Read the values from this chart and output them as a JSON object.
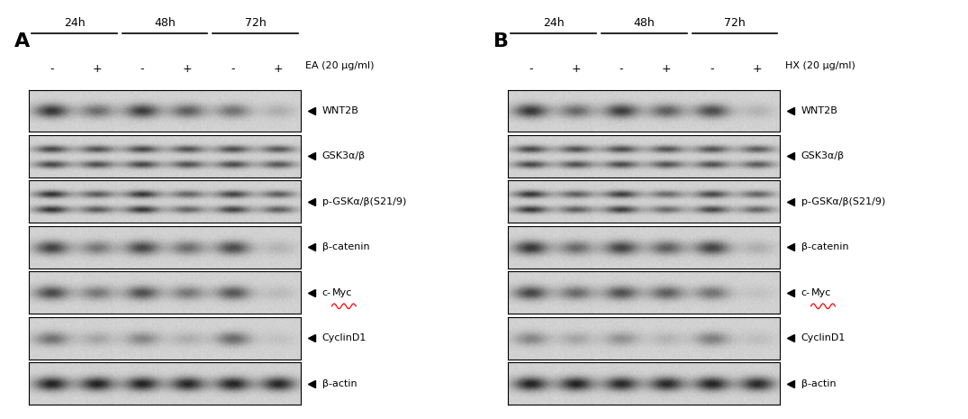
{
  "panel_A_label": "A",
  "panel_B_label": "B",
  "time_points": [
    "24h",
    "48h",
    "72h"
  ],
  "treatment_A": "EA (20 μg/ml)",
  "treatment_B": "HX (20 μg/ml)",
  "proteins": [
    "WNT2B",
    "GSK3α/β",
    "p-GSKα/β(S21/9)",
    "β-catenin",
    "c-Myc",
    "CyclinD1",
    "β-actin"
  ],
  "panel_A_bands": {
    "WNT2B": [
      0.78,
      0.5,
      0.75,
      0.58,
      0.48,
      0.18
    ],
    "GSK3α/β": [
      0.7,
      0.65,
      0.7,
      0.65,
      0.68,
      0.62
    ],
    "p-GSKα/β(S21/9)": [
      0.8,
      0.6,
      0.78,
      0.55,
      0.72,
      0.58
    ],
    "β-catenin": [
      0.72,
      0.45,
      0.7,
      0.5,
      0.68,
      0.15
    ],
    "c-Myc": [
      0.68,
      0.45,
      0.65,
      0.45,
      0.62,
      0.12
    ],
    "CyclinD1": [
      0.48,
      0.22,
      0.38,
      0.18,
      0.52,
      0.08
    ],
    "β-actin": [
      0.88,
      0.88,
      0.88,
      0.86,
      0.88,
      0.86
    ]
  },
  "panel_B_bands": {
    "WNT2B": [
      0.78,
      0.52,
      0.75,
      0.58,
      0.68,
      0.15
    ],
    "GSK3α/β": [
      0.7,
      0.65,
      0.68,
      0.64,
      0.65,
      0.6
    ],
    "p-GSKα/β(S21/9)": [
      0.78,
      0.58,
      0.75,
      0.52,
      0.7,
      0.55
    ],
    "β-catenin": [
      0.78,
      0.52,
      0.72,
      0.58,
      0.72,
      0.18
    ],
    "c-Myc": [
      0.7,
      0.52,
      0.65,
      0.58,
      0.48,
      0.08
    ],
    "CyclinD1": [
      0.38,
      0.22,
      0.32,
      0.15,
      0.42,
      0.1
    ],
    "β-actin": [
      0.88,
      0.88,
      0.85,
      0.85,
      0.88,
      0.85
    ]
  },
  "double_proteins": [
    "GSK3α/β",
    "p-GSKα/β(S21/9)"
  ]
}
